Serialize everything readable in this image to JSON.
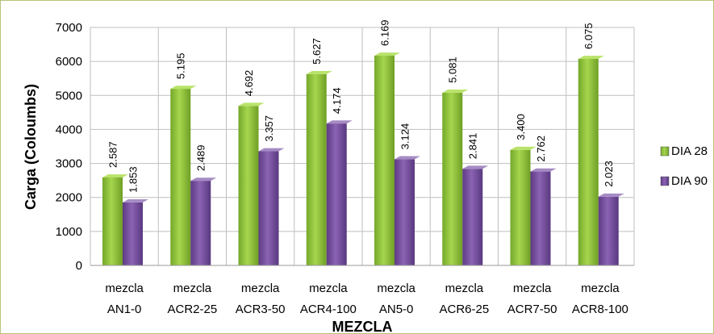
{
  "chart_data": {
    "type": "bar",
    "title": "",
    "xlabel": "MEZCLA",
    "ylabel": "Carga  (Coloumbs)",
    "ylim": [
      0,
      7000
    ],
    "yticks": [
      0,
      1000,
      2000,
      3000,
      4000,
      5000,
      6000,
      7000
    ],
    "grid": true,
    "legend_position": "right",
    "categories": [
      [
        "mezcla",
        "AN1-0"
      ],
      [
        "mezcla",
        "ACR2-25"
      ],
      [
        "mezcla",
        "ACR3-50"
      ],
      [
        "mezcla",
        "ACR4-100"
      ],
      [
        "mezcla",
        "AN5-0"
      ],
      [
        "mezcla",
        "ACR6-25"
      ],
      [
        "mezcla",
        "ACR7-50"
      ],
      [
        "mezcla",
        "ACR8-100"
      ]
    ],
    "series": [
      {
        "name": "DIA 28",
        "color": "#8fc33a",
        "values": [
          2587,
          5195,
          4692,
          5627,
          6169,
          5081,
          3400,
          6075
        ],
        "labels": [
          "2.587",
          "5.195",
          "4.692",
          "5.627",
          "6.169",
          "5.081",
          "3.400",
          "6.075"
        ]
      },
      {
        "name": "DIA 90",
        "color": "#7a51a0",
        "values": [
          1853,
          2489,
          3357,
          4174,
          3124,
          2841,
          2762,
          2023
        ],
        "labels": [
          "1.853",
          "2.489",
          "3.357",
          "4.174",
          "3.124",
          "2.841",
          "2.762",
          "2.023"
        ]
      }
    ]
  }
}
